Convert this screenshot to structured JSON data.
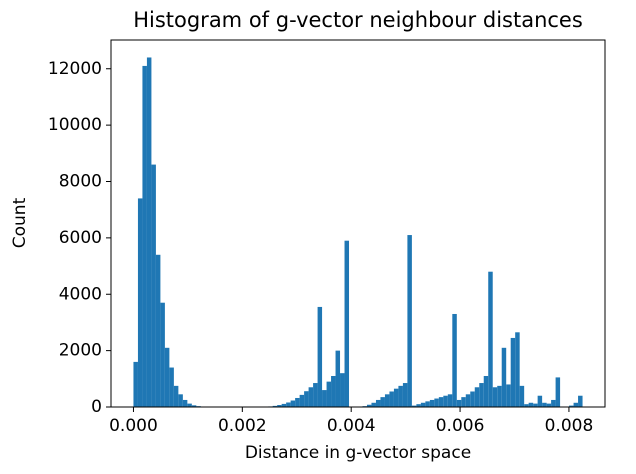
{
  "chart_data": {
    "type": "histogram",
    "title": "Histogram of g-vector neighbour distances",
    "xlabel": "Distance in g-vector space",
    "ylabel": "Count",
    "color": "#1f77b4",
    "bins": [
      0,
      8.25e-05,
      0.000165,
      0.0002475,
      0.00033,
      0.0004125,
      0.000495,
      0.0005775,
      0.00066,
      0.0007425,
      0.000825,
      0.0009075,
      0.00099,
      0.0010725,
      0.001155,
      0.0012375,
      0.00132,
      0.0014025,
      0.001485,
      0.0015675,
      0.00165,
      0.0017325,
      0.001815,
      0.0018975,
      0.00198,
      0.0020625,
      0.002145,
      0.0022275,
      0.00231,
      0.0023925,
      0.002475,
      0.0025575,
      0.00264,
      0.0027225,
      0.002805,
      0.0028875,
      0.00297,
      0.0030525,
      0.003135,
      0.0032175,
      0.0033,
      0.0033825,
      0.003465,
      0.0035475,
      0.00363,
      0.0037125,
      0.003795,
      0.0038775,
      0.00396,
      0.0040425,
      0.004125,
      0.0042075,
      0.00429,
      0.0043725,
      0.004455,
      0.0045375,
      0.00462,
      0.0047025,
      0.004785,
      0.0048675,
      0.00495,
      0.0050325,
      0.005115,
      0.0051975,
      0.00528,
      0.0053625,
      0.005445,
      0.0055275,
      0.00561,
      0.0056925,
      0.005775,
      0.0058575,
      0.00594,
      0.0060225,
      0.006105,
      0.0061875,
      0.00627,
      0.0063525,
      0.006435,
      0.0065175,
      0.0066,
      0.0066825,
      0.006765,
      0.0068475,
      0.00693,
      0.0070125,
      0.007095,
      0.0071775,
      0.00726,
      0.0073425,
      0.007425,
      0.0075075,
      0.00759,
      0.0076725,
      0.007755,
      0.0078375,
      0.00792,
      0.0080025,
      0.008085,
      0.0081675,
      0.00825
    ],
    "values": [
      1600,
      7400,
      12100,
      12400,
      8600,
      5400,
      3700,
      2100,
      1400,
      750,
      450,
      250,
      120,
      60,
      30,
      10,
      5,
      2,
      0,
      0,
      0,
      0,
      0,
      0,
      0,
      0,
      2,
      5,
      10,
      15,
      20,
      40,
      70,
      110,
      160,
      230,
      320,
      430,
      560,
      700,
      850,
      3550,
      600,
      900,
      1100,
      2000,
      1200,
      5900,
      0,
      0,
      10,
      30,
      80,
      150,
      250,
      350,
      450,
      550,
      650,
      750,
      850,
      6100,
      50,
      100,
      150,
      200,
      250,
      300,
      350,
      400,
      450,
      3300,
      250,
      350,
      450,
      550,
      700,
      850,
      1100,
      4800,
      700,
      750,
      2100,
      800,
      2450,
      2650,
      750,
      100,
      150,
      120,
      400,
      150,
      120,
      250,
      1050,
      0,
      0,
      50,
      150,
      400
    ],
    "xlim": [
      -0.0004125,
      0.0086625
    ],
    "ylim": [
      0,
      13020
    ],
    "xticks": [
      {
        "value": 0,
        "label": "0.000"
      },
      {
        "value": 0.002,
        "label": "0.002"
      },
      {
        "value": 0.004,
        "label": "0.004"
      },
      {
        "value": 0.006,
        "label": "0.006"
      },
      {
        "value": 0.008,
        "label": "0.008"
      }
    ],
    "yticks": [
      0,
      2000,
      4000,
      6000,
      8000,
      10000,
      12000
    ]
  }
}
